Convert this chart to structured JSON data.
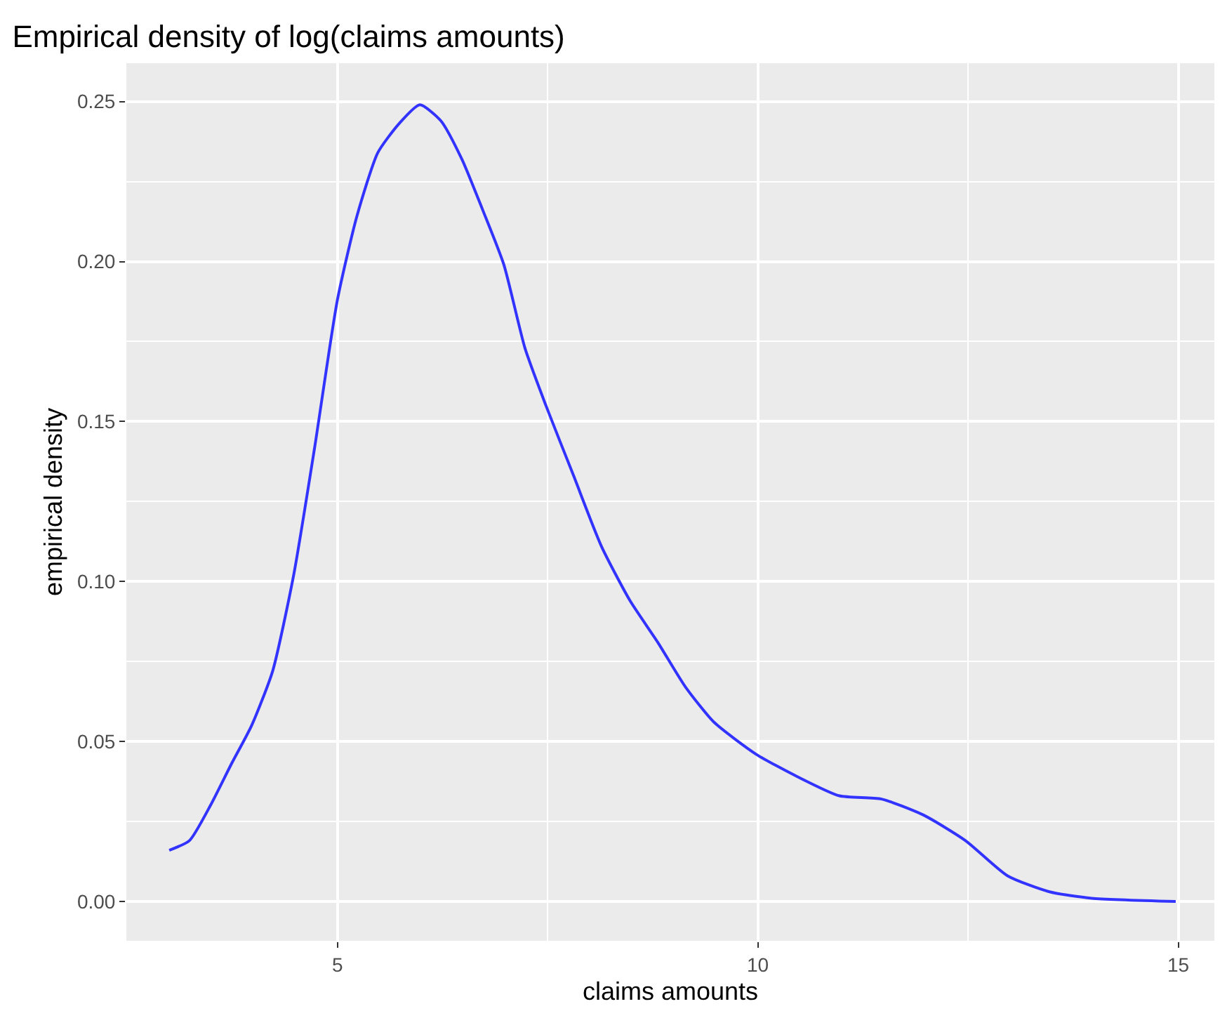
{
  "chart_data": {
    "type": "line",
    "title": "Empirical density of log(claims amounts)",
    "xlabel": "claims amounts",
    "ylabel": "empirical density",
    "xlim": [
      2.49,
      15.43
    ],
    "ylim": [
      -0.0123,
      0.262
    ],
    "xticks": [
      5,
      10,
      15
    ],
    "yticks": [
      {
        "value": 0,
        "label": "0.00"
      },
      {
        "value": 0.05,
        "label": "0.05"
      },
      {
        "value": 0.1,
        "label": "0.10"
      },
      {
        "value": 0.15,
        "label": "0.15"
      },
      {
        "value": 0.2,
        "label": "0.20"
      },
      {
        "value": 0.25,
        "label": "0.25"
      }
    ],
    "grid": true,
    "marker": "none",
    "line_style": "solid",
    "series": [
      {
        "color": "#3333ff",
        "x": [
          3.0,
          3.24,
          3.49,
          3.74,
          3.98,
          4.23,
          4.48,
          4.73,
          5.0,
          5.23,
          5.48,
          5.73,
          5.98,
          6.23,
          6.48,
          6.73,
          6.98,
          7.23,
          7.48,
          7.81,
          8.14,
          8.48,
          8.81,
          9.14,
          9.48,
          9.98,
          10.47,
          10.97,
          11.47,
          11.97,
          12.47,
          12.97,
          13.47,
          13.97,
          14.97
        ],
        "values": [
          0.016,
          0.019,
          0.03,
          0.043,
          0.055,
          0.072,
          0.102,
          0.142,
          0.188,
          0.214,
          0.234,
          0.243,
          0.249,
          0.244,
          0.232,
          0.216,
          0.199,
          0.173,
          0.155,
          0.133,
          0.111,
          0.094,
          0.081,
          0.067,
          0.056,
          0.046,
          0.039,
          0.033,
          0.032,
          0.027,
          0.019,
          0.008,
          0.003,
          0.001,
          0.0
        ]
      }
    ]
  }
}
